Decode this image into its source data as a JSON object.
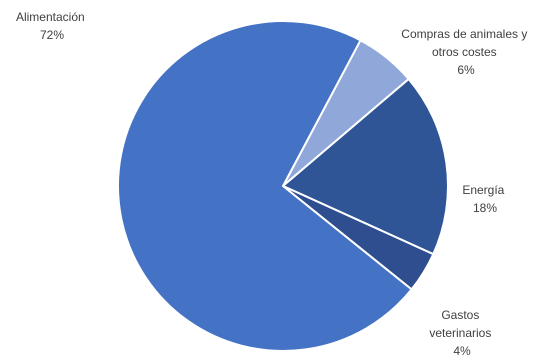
{
  "chart_data": {
    "type": "pie",
    "slices": [
      {
        "lines": [
          "Alimentación",
          "72%"
        ],
        "value": 72,
        "color": "#4472c4"
      },
      {
        "lines": [
          "Compras de animales y",
          "otros costes",
          "6%"
        ],
        "value": 6,
        "color": "#8fa7d9"
      },
      {
        "lines": [
          "Energía",
          "18%"
        ],
        "value": 18,
        "color": "#2f5597"
      },
      {
        "lines": [
          "Gastos",
          "veterinarios",
          "4%"
        ],
        "value": 4,
        "color": "#2e4e8f"
      }
    ],
    "legend": "none"
  }
}
